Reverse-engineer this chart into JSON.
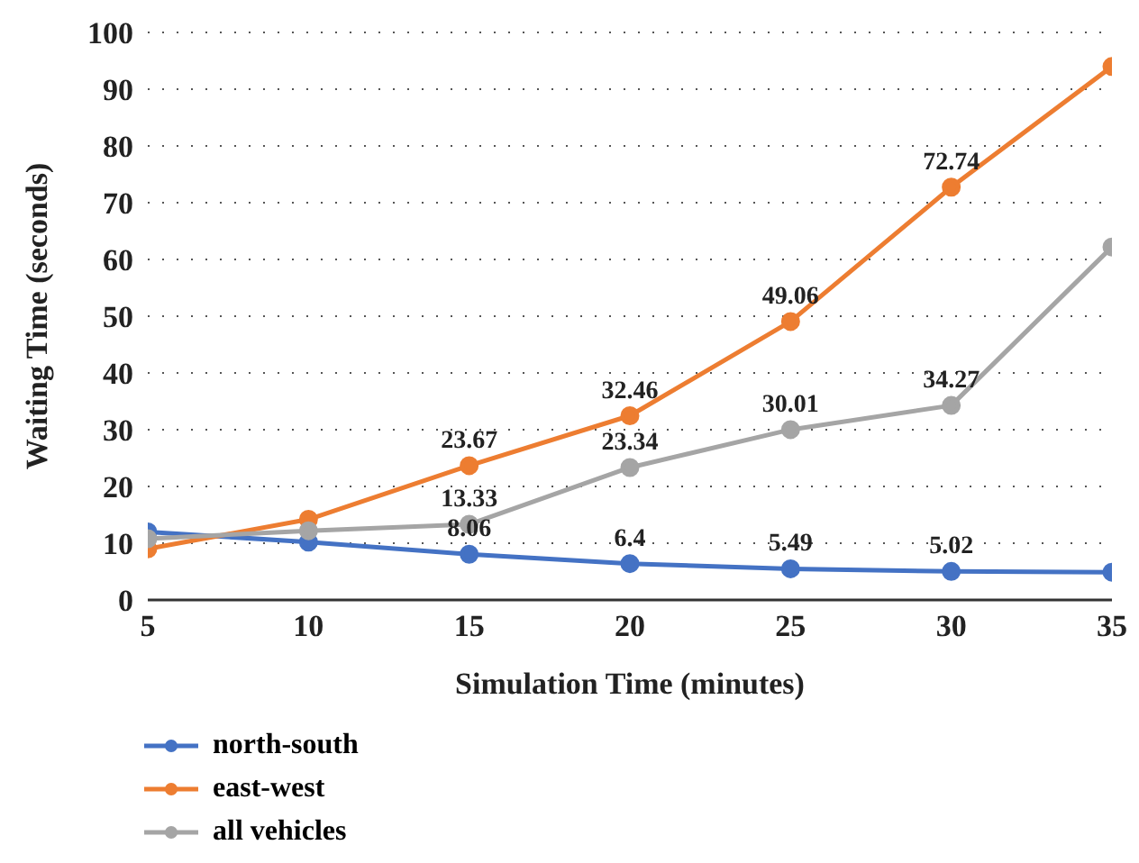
{
  "chart_data": {
    "type": "line",
    "xlabel": "Simulation Time (minutes)",
    "ylabel": "Waiting Time (seconds)",
    "x": [
      5,
      10,
      15,
      20,
      25,
      30,
      35
    ],
    "xlim": [
      5,
      35
    ],
    "xticks": [
      5,
      10,
      15,
      20,
      25,
      30,
      35
    ],
    "ylim": [
      0,
      100
    ],
    "yticks": [
      0,
      10,
      20,
      30,
      40,
      50,
      60,
      70,
      80,
      90,
      100
    ],
    "grid": "y",
    "legend": "bottom left",
    "marker": "circle",
    "line_style": "solid",
    "series": [
      {
        "name": "north-south",
        "color": "#4472c4",
        "values": [
          12,
          10.2,
          8.06,
          6.4,
          5.49,
          5.02,
          4.9
        ],
        "value_labels": [
          null,
          null,
          "8.06",
          "6.4",
          "5.49",
          "5.02",
          null
        ]
      },
      {
        "name": "east-west",
        "color": "#ed7d31",
        "values": [
          9,
          14.2,
          23.67,
          32.46,
          49.06,
          72.74,
          94
        ],
        "value_labels": [
          null,
          null,
          "23.67",
          "32.46",
          "49.06",
          "72.74",
          null
        ]
      },
      {
        "name": "all vehicles",
        "color": "#a5a5a5",
        "values": [
          10.8,
          12.2,
          13.33,
          23.34,
          30.01,
          34.27,
          62.2
        ],
        "value_labels": [
          null,
          null,
          "13.33",
          "23.34",
          "30.01",
          "34.27",
          null
        ]
      }
    ]
  }
}
